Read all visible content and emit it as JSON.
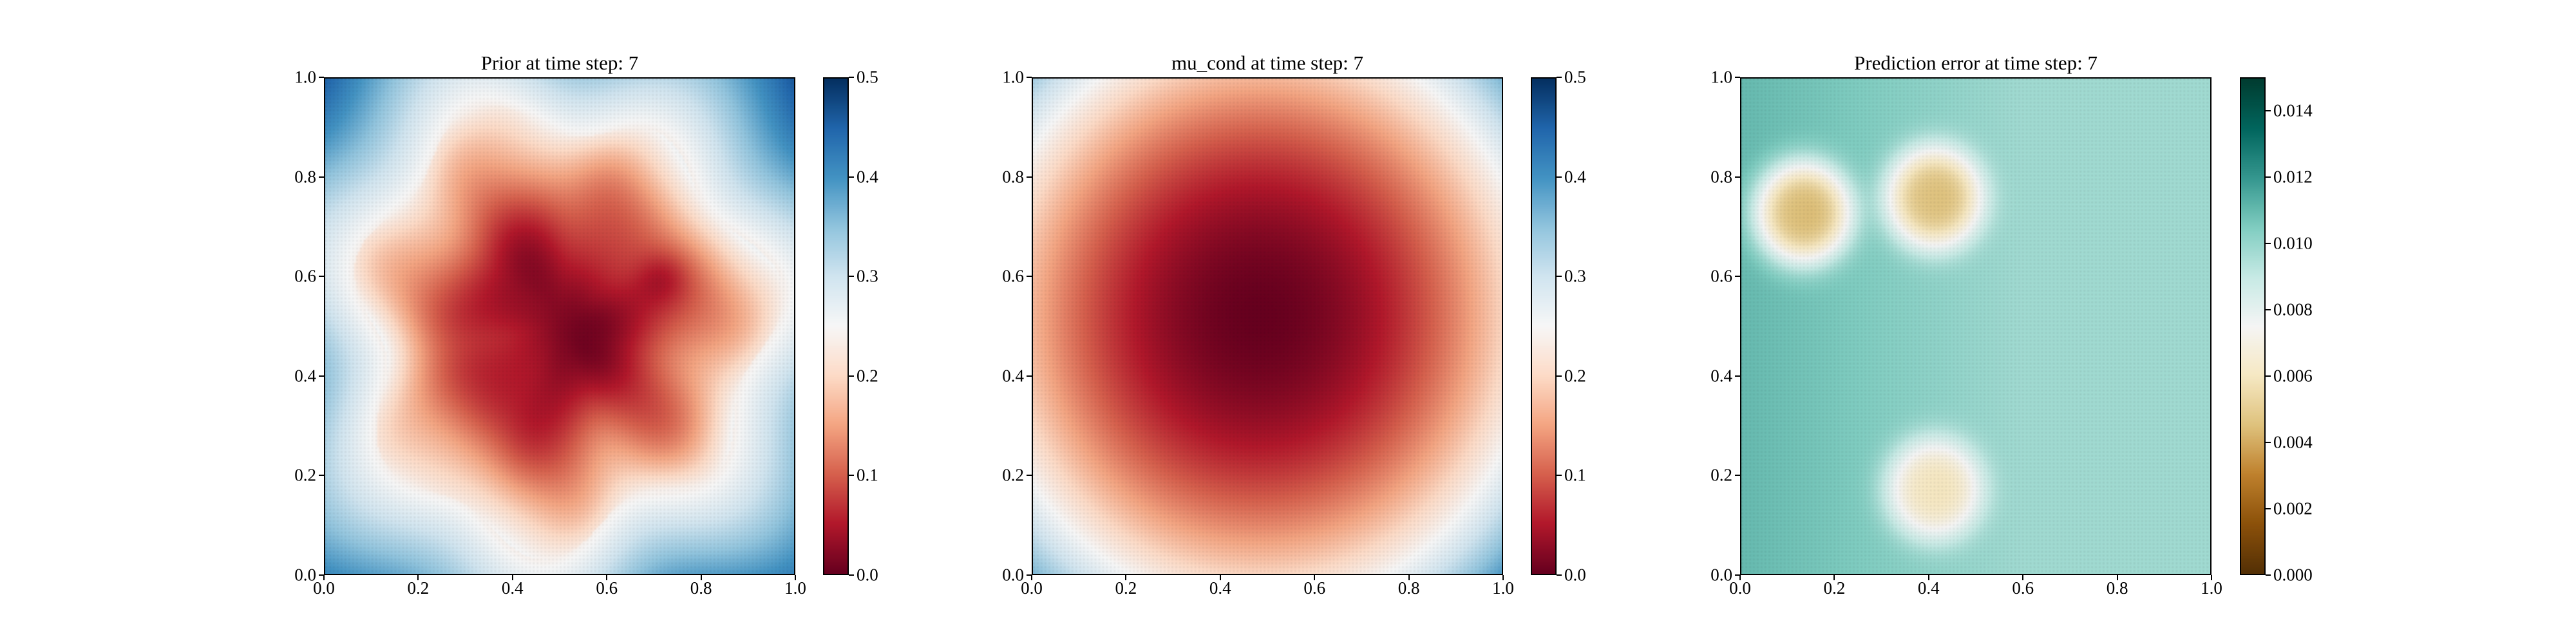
{
  "chart_data": [
    {
      "type": "heatmap",
      "title": "Prior at time step: 7",
      "xlim": [
        0.0,
        1.0
      ],
      "ylim": [
        0.0,
        1.0
      ],
      "x_ticks": [
        "0.0",
        "0.2",
        "0.4",
        "0.6",
        "0.8",
        "1.0"
      ],
      "y_ticks": [
        "0.0",
        "0.2",
        "0.4",
        "0.6",
        "0.8",
        "1.0"
      ],
      "colormap": "RdBu",
      "colorbar_range": [
        0.0,
        0.5
      ],
      "colorbar_ticks": [
        "0.0",
        "0.1",
        "0.2",
        "0.3",
        "0.4",
        "0.5"
      ],
      "field": {
        "shape": "irregular-radial",
        "center": [
          0.5,
          0.5
        ],
        "min_value": 0.0,
        "max_value": 0.5
      }
    },
    {
      "type": "heatmap",
      "title": "mu_cond at time step: 7",
      "xlim": [
        0.0,
        1.0
      ],
      "ylim": [
        0.0,
        1.0
      ],
      "x_ticks": [
        "0.0",
        "0.2",
        "0.4",
        "0.6",
        "0.8",
        "1.0"
      ],
      "y_ticks": [
        "0.0",
        "0.2",
        "0.4",
        "0.6",
        "0.8",
        "1.0"
      ],
      "colormap": "RdBu",
      "colorbar_range": [
        0.0,
        0.5
      ],
      "colorbar_ticks": [
        "0.0",
        "0.1",
        "0.2",
        "0.3",
        "0.4",
        "0.5"
      ],
      "field": {
        "shape": "radial",
        "center": [
          0.48,
          0.52
        ],
        "min_value": 0.0,
        "max_value": 0.5
      }
    },
    {
      "type": "heatmap",
      "title": "Prediction error at time step: 7",
      "xlim": [
        0.0,
        1.0
      ],
      "ylim": [
        0.0,
        1.0
      ],
      "x_ticks": [
        "0.0",
        "0.2",
        "0.4",
        "0.6",
        "0.8",
        "1.0"
      ],
      "y_ticks": [
        "0.0",
        "0.2",
        "0.4",
        "0.6",
        "0.8",
        "1.0"
      ],
      "colormap": "BrBG",
      "colorbar_range": [
        0.0,
        0.015
      ],
      "colorbar_ticks": [
        "0.000",
        "0.002",
        "0.004",
        "0.006",
        "0.008",
        "0.010",
        "0.012",
        "0.014"
      ],
      "field": {
        "background_value": 0.0098,
        "low_spots": [
          {
            "x": 0.13,
            "y": 0.73,
            "value": 0.0035
          },
          {
            "x": 0.41,
            "y": 0.76,
            "value": 0.0042
          },
          {
            "x": 0.41,
            "y": 0.17,
            "value": 0.0056
          }
        ]
      }
    }
  ]
}
